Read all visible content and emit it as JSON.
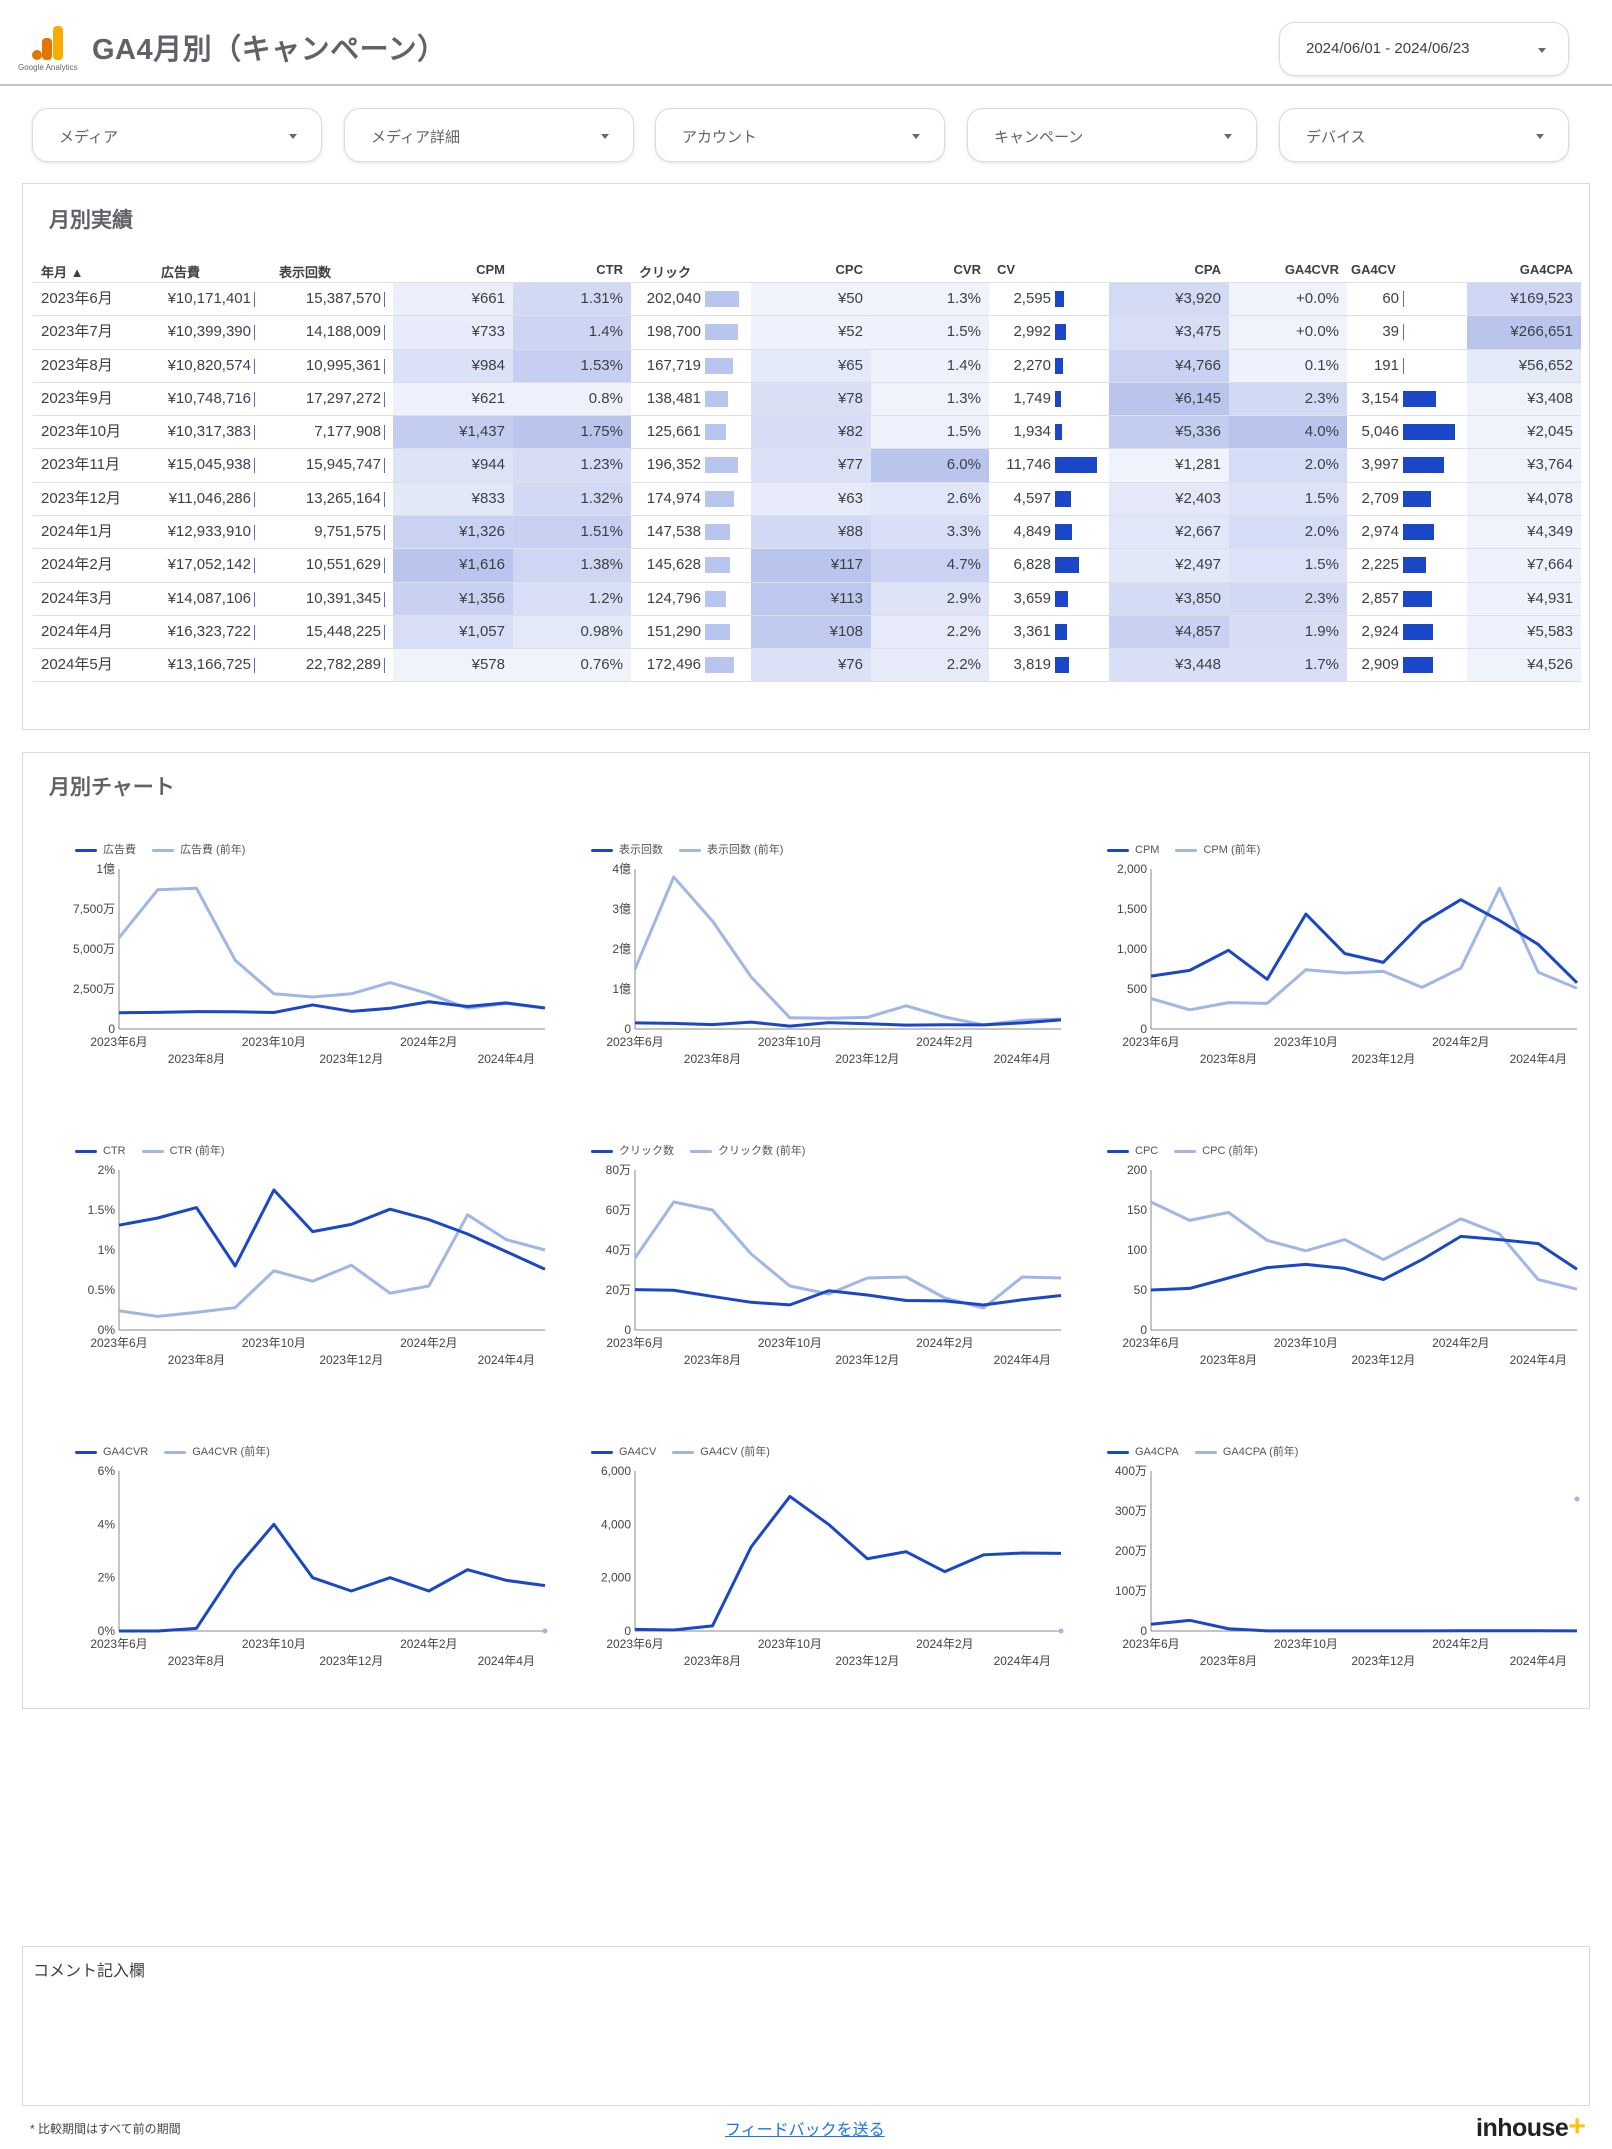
{
  "header": {
    "logo_text": "Google Analytics",
    "title": "GA4月別（キャンペーン）",
    "date_range": "2024/06/01 - 2024/06/23"
  },
  "filters": [
    "メディア",
    "メディア詳細",
    "アカウント",
    "キャンペーン",
    "デバイス"
  ],
  "table_section": {
    "title": "月別実績",
    "headers": [
      "年月 ▲",
      "広告費",
      "表示回数",
      "CPM",
      "CTR",
      "クリック",
      "CPC",
      "CVR",
      "CV",
      "CPA",
      "GA4CVR",
      "GA4CV",
      "GA4CPA"
    ],
    "rows": [
      [
        "2023年6月",
        "¥10,171,401",
        "15,387,570",
        "¥661",
        "1.31%",
        "202,040",
        "¥50",
        "1.3%",
        "2,595",
        "¥3,920",
        "+0.0%",
        "60",
        "¥169,523"
      ],
      [
        "2023年7月",
        "¥10,399,390",
        "14,188,009",
        "¥733",
        "1.4%",
        "198,700",
        "¥52",
        "1.5%",
        "2,992",
        "¥3,475",
        "+0.0%",
        "39",
        "¥266,651"
      ],
      [
        "2023年8月",
        "¥10,820,574",
        "10,995,361",
        "¥984",
        "1.53%",
        "167,719",
        "¥65",
        "1.4%",
        "2,270",
        "¥4,766",
        "0.1%",
        "191",
        "¥56,652"
      ],
      [
        "2023年9月",
        "¥10,748,716",
        "17,297,272",
        "¥621",
        "0.8%",
        "138,481",
        "¥78",
        "1.3%",
        "1,749",
        "¥6,145",
        "2.3%",
        "3,154",
        "¥3,408"
      ],
      [
        "2023年10月",
        "¥10,317,383",
        "7,177,908",
        "¥1,437",
        "1.75%",
        "125,661",
        "¥82",
        "1.5%",
        "1,934",
        "¥5,336",
        "4.0%",
        "5,046",
        "¥2,045"
      ],
      [
        "2023年11月",
        "¥15,045,938",
        "15,945,747",
        "¥944",
        "1.23%",
        "196,352",
        "¥77",
        "6.0%",
        "11,746",
        "¥1,281",
        "2.0%",
        "3,997",
        "¥3,764"
      ],
      [
        "2023年12月",
        "¥11,046,286",
        "13,265,164",
        "¥833",
        "1.32%",
        "174,974",
        "¥63",
        "2.6%",
        "4,597",
        "¥2,403",
        "1.5%",
        "2,709",
        "¥4,078"
      ],
      [
        "2024年1月",
        "¥12,933,910",
        "9,751,575",
        "¥1,326",
        "1.51%",
        "147,538",
        "¥88",
        "3.3%",
        "4,849",
        "¥2,667",
        "2.0%",
        "2,974",
        "¥4,349"
      ],
      [
        "2024年2月",
        "¥17,052,142",
        "10,551,629",
        "¥1,616",
        "1.38%",
        "145,628",
        "¥117",
        "4.7%",
        "6,828",
        "¥2,497",
        "1.5%",
        "2,225",
        "¥7,664"
      ],
      [
        "2024年3月",
        "¥14,087,106",
        "10,391,345",
        "¥1,356",
        "1.2%",
        "124,796",
        "¥113",
        "2.9%",
        "3,659",
        "¥3,850",
        "2.3%",
        "2,857",
        "¥4,931"
      ],
      [
        "2024年4月",
        "¥16,323,722",
        "15,448,225",
        "¥1,057",
        "0.98%",
        "151,290",
        "¥108",
        "2.2%",
        "3,361",
        "¥4,857",
        "1.9%",
        "2,924",
        "¥5,583"
      ],
      [
        "2024年5月",
        "¥13,166,725",
        "22,782,289",
        "¥578",
        "0.76%",
        "172,496",
        "¥76",
        "2.2%",
        "3,819",
        "¥3,448",
        "1.7%",
        "2,909",
        "¥4,526"
      ]
    ]
  },
  "chart_section": {
    "title": "月別チャート"
  },
  "chart_data": [
    {
      "type": "line",
      "title": "広告費",
      "x": [
        "2023年6月",
        "2023年7月",
        "2023年8月",
        "2023年9月",
        "2023年10月",
        "2023年11月",
        "2023年12月",
        "2024年1月",
        "2024年2月",
        "2024年3月",
        "2024年4月",
        "2024年5月"
      ],
      "x_tick_labels_top": [
        "2023年6月",
        "2023年10月",
        "2024年2月"
      ],
      "x_tick_labels_bottom": [
        "2023年8月",
        "2023年12月",
        "2024年4月"
      ],
      "ylim": [
        0,
        100000000
      ],
      "yticks": [
        0,
        25000000,
        50000000,
        75000000,
        100000000
      ],
      "ytick_labels": [
        "0",
        "2,500万",
        "5,000万",
        "7,500万",
        "1億"
      ],
      "series": [
        {
          "name": "広告費",
          "color": "#1a47c8",
          "values": [
            10171401,
            10399390,
            10820574,
            10748716,
            10317383,
            15045938,
            11046286,
            12933910,
            17052142,
            14087106,
            16323722,
            13166725
          ]
        },
        {
          "name": "広告費 (前年)",
          "color": "#9fb6e6",
          "values": [
            57000000,
            87000000,
            88000000,
            43000000,
            22000000,
            20000000,
            22000000,
            29000000,
            22000000,
            13000000,
            16000000,
            13000000
          ]
        }
      ]
    },
    {
      "type": "line",
      "title": "表示回数",
      "x": [
        "2023年6月",
        "2023年7月",
        "2023年8月",
        "2023年9月",
        "2023年10月",
        "2023年11月",
        "2023年12月",
        "2024年1月",
        "2024年2月",
        "2024年3月",
        "2024年4月",
        "2024年5月"
      ],
      "x_tick_labels_top": [
        "2023年6月",
        "2023年10月",
        "2024年2月"
      ],
      "x_tick_labels_bottom": [
        "2023年8月",
        "2023年12月",
        "2024年4月"
      ],
      "ylim": [
        0,
        400000000
      ],
      "yticks": [
        0,
        100000000,
        200000000,
        300000000,
        400000000
      ],
      "ytick_labels": [
        "0",
        "1億",
        "2億",
        "3億",
        "4億"
      ],
      "series": [
        {
          "name": "表示回数",
          "color": "#1a47c8",
          "values": [
            15387570,
            14188009,
            10995361,
            17297272,
            7177908,
            15945747,
            13265164,
            9751575,
            10551629,
            10391345,
            15448225,
            22782289
          ]
        },
        {
          "name": "表示回数 (前年)",
          "color": "#9fb6e6",
          "values": [
            150000000,
            380000000,
            270000000,
            130000000,
            28000000,
            27000000,
            29000000,
            58000000,
            30000000,
            10000000,
            22000000,
            25000000
          ]
        }
      ]
    },
    {
      "type": "line",
      "title": "CPM",
      "x": [
        "2023年6月",
        "2023年7月",
        "2023年8月",
        "2023年9月",
        "2023年10月",
        "2023年11月",
        "2023年12月",
        "2024年1月",
        "2024年2月",
        "2024年3月",
        "2024年4月",
        "2024年5月"
      ],
      "x_tick_labels_top": [
        "2023年6月",
        "2023年10月",
        "2024年2月"
      ],
      "x_tick_labels_bottom": [
        "2023年8月",
        "2023年12月",
        "2024年4月"
      ],
      "ylim": [
        0,
        2000
      ],
      "yticks": [
        0,
        500,
        1000,
        1500,
        2000
      ],
      "ytick_labels": [
        "0",
        "500",
        "1,000",
        "1,500",
        "2,000"
      ],
      "series": [
        {
          "name": "CPM",
          "color": "#1a47c8",
          "values": [
            661,
            733,
            984,
            621,
            1437,
            944,
            833,
            1326,
            1616,
            1356,
            1057,
            578
          ]
        },
        {
          "name": "CPM (前年)",
          "color": "#9fb6e6",
          "values": [
            380,
            240,
            330,
            320,
            740,
            700,
            720,
            520,
            760,
            1760,
            710,
            510
          ]
        }
      ]
    },
    {
      "type": "line",
      "title": "CTR",
      "x": [
        "2023年6月",
        "2023年7月",
        "2023年8月",
        "2023年9月",
        "2023年10月",
        "2023年11月",
        "2023年12月",
        "2024年1月",
        "2024年2月",
        "2024年3月",
        "2024年4月",
        "2024年5月"
      ],
      "x_tick_labels_top": [
        "2023年6月",
        "2023年10月",
        "2024年2月"
      ],
      "x_tick_labels_bottom": [
        "2023年8月",
        "2023年12月",
        "2024年4月"
      ],
      "ylim": [
        0,
        2
      ],
      "yticks": [
        0,
        0.5,
        1,
        1.5,
        2
      ],
      "ytick_labels": [
        "0%",
        "0.5%",
        "1%",
        "1.5%",
        "2%"
      ],
      "series": [
        {
          "name": "CTR",
          "color": "#1a47c8",
          "values": [
            1.31,
            1.4,
            1.53,
            0.8,
            1.75,
            1.23,
            1.32,
            1.51,
            1.38,
            1.2,
            0.98,
            0.76
          ]
        },
        {
          "name": "CTR (前年)",
          "color": "#9fb6e6",
          "values": [
            0.24,
            0.17,
            0.22,
            0.28,
            0.74,
            0.61,
            0.81,
            0.46,
            0.55,
            1.44,
            1.13,
            1.0
          ]
        }
      ]
    },
    {
      "type": "line",
      "title": "クリック数",
      "x": [
        "2023年6月",
        "2023年7月",
        "2023年8月",
        "2023年9月",
        "2023年10月",
        "2023年11月",
        "2023年12月",
        "2024年1月",
        "2024年2月",
        "2024年3月",
        "2024年4月",
        "2024年5月"
      ],
      "x_tick_labels_top": [
        "2023年6月",
        "2023年10月",
        "2024年2月"
      ],
      "x_tick_labels_bottom": [
        "2023年8月",
        "2023年12月",
        "2024年4月"
      ],
      "ylim": [
        0,
        800000
      ],
      "yticks": [
        0,
        200000,
        400000,
        600000,
        800000
      ],
      "ytick_labels": [
        "0",
        "20万",
        "40万",
        "60万",
        "80万"
      ],
      "series": [
        {
          "name": "クリック数",
          "color": "#1a47c8",
          "values": [
            202040,
            198700,
            167719,
            138481,
            125661,
            196352,
            174974,
            147538,
            145628,
            124796,
            151290,
            172496
          ]
        },
        {
          "name": "クリック数 (前年)",
          "color": "#9fb6e6",
          "values": [
            360000,
            640000,
            600000,
            380000,
            220000,
            180000,
            260000,
            265000,
            160000,
            110000,
            265000,
            260000
          ]
        }
      ]
    },
    {
      "type": "line",
      "title": "CPC",
      "x": [
        "2023年6月",
        "2023年7月",
        "2023年8月",
        "2023年9月",
        "2023年10月",
        "2023年11月",
        "2023年12月",
        "2024年1月",
        "2024年2月",
        "2024年3月",
        "2024年4月",
        "2024年5月"
      ],
      "x_tick_labels_top": [
        "2023年6月",
        "2023年10月",
        "2024年2月"
      ],
      "x_tick_labels_bottom": [
        "2023年8月",
        "2023年12月",
        "2024年4月"
      ],
      "ylim": [
        0,
        200
      ],
      "yticks": [
        0,
        50,
        100,
        150,
        200
      ],
      "ytick_labels": [
        "0",
        "50",
        "100",
        "150",
        "200"
      ],
      "series": [
        {
          "name": "CPC",
          "color": "#1a47c8",
          "values": [
            50,
            52,
            65,
            78,
            82,
            77,
            63,
            88,
            117,
            113,
            108,
            76
          ]
        },
        {
          "name": "CPC (前年)",
          "color": "#9fb6e6",
          "values": [
            160,
            137,
            147,
            112,
            99,
            113,
            88,
            113,
            139,
            120,
            63,
            51
          ]
        }
      ]
    },
    {
      "type": "line",
      "title": "GA4CVR",
      "x": [
        "2023年6月",
        "2023年7月",
        "2023年8月",
        "2023年9月",
        "2023年10月",
        "2023年11月",
        "2023年12月",
        "2024年1月",
        "2024年2月",
        "2024年3月",
        "2024年4月",
        "2024年5月"
      ],
      "x_tick_labels_top": [
        "2023年6月",
        "2023年10月",
        "2024年2月"
      ],
      "x_tick_labels_bottom": [
        "2023年8月",
        "2023年12月",
        "2024年4月"
      ],
      "ylim": [
        0,
        6
      ],
      "yticks": [
        0,
        2,
        4,
        6
      ],
      "ytick_labels": [
        "0%",
        "2%",
        "4%",
        "6%"
      ],
      "series": [
        {
          "name": "GA4CVR",
          "color": "#1a47c8",
          "values": [
            0.0,
            0.0,
            0.1,
            2.3,
            4.0,
            2.0,
            1.5,
            2.0,
            1.5,
            2.3,
            1.9,
            1.7
          ]
        },
        {
          "name": "GA4CVR (前年)",
          "color": "#9fb6e6",
          "values": [
            null,
            null,
            null,
            null,
            null,
            null,
            null,
            null,
            null,
            null,
            null,
            0.0
          ]
        }
      ]
    },
    {
      "type": "line",
      "title": "GA4CV",
      "x": [
        "2023年6月",
        "2023年7月",
        "2023年8月",
        "2023年9月",
        "2023年10月",
        "2023年11月",
        "2023年12月",
        "2024年1月",
        "2024年2月",
        "2024年3月",
        "2024年4月",
        "2024年5月"
      ],
      "x_tick_labels_top": [
        "2023年6月",
        "2023年10月",
        "2024年2月"
      ],
      "x_tick_labels_bottom": [
        "2023年8月",
        "2023年12月",
        "2024年4月"
      ],
      "ylim": [
        0,
        6000
      ],
      "yticks": [
        0,
        2000,
        4000,
        6000
      ],
      "ytick_labels": [
        "0",
        "2,000",
        "4,000",
        "6,000"
      ],
      "series": [
        {
          "name": "GA4CV",
          "color": "#1a47c8",
          "values": [
            60,
            39,
            191,
            3154,
            5046,
            3997,
            2709,
            2974,
            2225,
            2857,
            2924,
            2909
          ]
        },
        {
          "name": "GA4CV (前年)",
          "color": "#9fb6e6",
          "values": [
            null,
            null,
            null,
            null,
            null,
            null,
            null,
            null,
            null,
            null,
            null,
            0
          ]
        }
      ]
    },
    {
      "type": "line",
      "title": "GA4CPA",
      "x": [
        "2023年6月",
        "2023年7月",
        "2023年8月",
        "2023年9月",
        "2023年10月",
        "2023年11月",
        "2023年12月",
        "2024年1月",
        "2024年2月",
        "2024年3月",
        "2024年4月",
        "2024年5月"
      ],
      "x_tick_labels_top": [
        "2023年6月",
        "2023年10月",
        "2024年2月"
      ],
      "x_tick_labels_bottom": [
        "2023年8月",
        "2023年12月",
        "2024年4月"
      ],
      "ylim": [
        0,
        4000000
      ],
      "yticks": [
        0,
        1000000,
        2000000,
        3000000,
        4000000
      ],
      "ytick_labels": [
        "0",
        "100万",
        "200万",
        "300万",
        "400万"
      ],
      "series": [
        {
          "name": "GA4CPA",
          "color": "#1a47c8",
          "values": [
            169523,
            266651,
            56652,
            3408,
            2045,
            3764,
            4078,
            4349,
            7664,
            4931,
            5583,
            4526
          ]
        },
        {
          "name": "GA4CPA (前年)",
          "color": "#9fb6e6",
          "values": [
            null,
            null,
            null,
            null,
            null,
            null,
            null,
            null,
            null,
            null,
            null,
            3300000
          ]
        }
      ]
    }
  ],
  "comment": {
    "label": "コメント記入欄"
  },
  "footer": {
    "note": "* 比較期間はすべて前の期間",
    "feedback_link": "フィードバックを送る",
    "brand": "inhouse",
    "brand_plus": "+"
  }
}
